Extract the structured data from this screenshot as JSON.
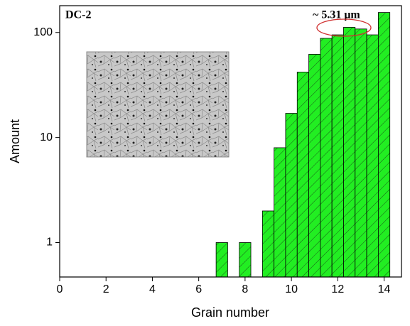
{
  "chart_data": {
    "type": "histogram",
    "x_label": "Grain number",
    "y_label": "Amount",
    "annotations": [
      "DC-2",
      "~ 5.31 μm"
    ],
    "bins": [
      6.75,
      7.25,
      7.75,
      8.25,
      8.75,
      9.25,
      9.75,
      10.25,
      10.75,
      11.25,
      11.75,
      12.25,
      12.75,
      13.25,
      13.75,
      14.25
    ],
    "values": [
      1,
      0,
      1,
      0,
      2,
      8,
      17,
      42,
      62,
      88,
      95,
      112,
      108,
      95,
      155
    ],
    "color": "#22ee22",
    "xlim": [
      0,
      14.75
    ],
    "xticks": [
      0,
      2,
      4,
      6,
      8,
      10,
      12,
      14
    ],
    "ylim": [
      0.47,
      180
    ],
    "yticks": [
      1,
      10,
      100
    ],
    "log_y": true
  }
}
